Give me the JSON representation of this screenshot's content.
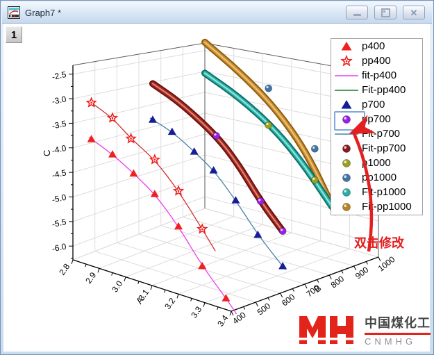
{
  "window": {
    "title": "Graph7 *",
    "layer_label": "1",
    "controls": {
      "minimize": "minimize",
      "restore": "restore",
      "close": "close"
    }
  },
  "chart_data": {
    "type": "scatter",
    "projection": "3d",
    "xlabel": "A",
    "ylabel": "B",
    "zlabel": "C",
    "x_range": [
      2.8,
      3.4
    ],
    "y_range": [
      400,
      1000
    ],
    "z_range": [
      -6.3,
      -2.3
    ],
    "x_tick_labels": [
      "2.8",
      "2.9",
      "3.0",
      "3.1",
      "3.2",
      "3.3",
      "3.4"
    ],
    "y_tick_labels": [
      "400",
      "500",
      "600",
      "700",
      "800",
      "900",
      "1000"
    ],
    "z_tick_labels": [
      "-2.5",
      "-3.0",
      "-3.5",
      "-4.0",
      "-4.5",
      "-5.0",
      "-5.5",
      "-6.0"
    ],
    "grid": true,
    "legend_position": "top-right",
    "series": [
      {
        "name": "p400",
        "type": "scatter",
        "marker": "triangle",
        "color": "#F0201E",
        "B": 400,
        "points": [
          [
            2.87,
            -3.7
          ],
          [
            2.95,
            -3.87
          ],
          [
            3.03,
            -4.12
          ],
          [
            3.11,
            -4.4
          ],
          [
            3.2,
            -4.9
          ],
          [
            3.29,
            -5.55
          ],
          [
            3.38,
            -6.05
          ]
        ]
      },
      {
        "name": "pp400",
        "type": "scatter",
        "marker": "star",
        "color": "#F0201E",
        "B": 400,
        "points": [
          [
            2.87,
            -2.96
          ],
          [
            2.95,
            -3.13
          ],
          [
            3.02,
            -3.43
          ],
          [
            3.11,
            -3.7
          ],
          [
            3.2,
            -4.18
          ],
          [
            3.29,
            -4.8
          ]
        ]
      },
      {
        "name": "fit-p400",
        "type": "line",
        "color": "#EE3CEE",
        "B": 400,
        "points": [
          [
            2.86,
            -3.68
          ],
          [
            2.95,
            -3.87
          ],
          [
            3.03,
            -4.12
          ],
          [
            3.11,
            -4.4
          ],
          [
            3.2,
            -4.9
          ],
          [
            3.29,
            -5.55
          ],
          [
            3.38,
            -6.05
          ],
          [
            3.42,
            -6.3
          ]
        ]
      },
      {
        "name": "Fit-pp400",
        "type": "line",
        "color": "#D62A2A",
        "legend_color": "#1A7A34",
        "B": 400,
        "points": [
          [
            2.86,
            -2.94
          ],
          [
            2.95,
            -3.13
          ],
          [
            3.02,
            -3.43
          ],
          [
            3.11,
            -3.7
          ],
          [
            3.2,
            -4.18
          ],
          [
            3.29,
            -4.8
          ],
          [
            3.34,
            -5.16
          ]
        ]
      },
      {
        "name": "p700",
        "type": "scatter",
        "marker": "triangle",
        "color": "#161D96",
        "B": 700,
        "points": [
          [
            2.85,
            -3.68
          ],
          [
            2.92,
            -3.83
          ],
          [
            3.0,
            -4.13
          ],
          [
            3.07,
            -4.42
          ],
          [
            3.15,
            -4.93
          ],
          [
            3.23,
            -5.53
          ],
          [
            3.32,
            -6.04
          ]
        ]
      },
      {
        "name": "pp700",
        "type": "scatter",
        "marker": "ball",
        "color": "#9B1FE8",
        "B": 700,
        "points": [
          [
            3.08,
            -3.66
          ],
          [
            3.24,
            -4.8
          ],
          [
            3.32,
            -5.3
          ]
        ]
      },
      {
        "name": "Fit-p700",
        "type": "line",
        "color": "#4682A8",
        "B": 700,
        "points": [
          [
            2.84,
            -3.66
          ],
          [
            2.92,
            -3.83
          ],
          [
            3.0,
            -4.13
          ],
          [
            3.07,
            -4.42
          ],
          [
            3.15,
            -4.93
          ],
          [
            3.23,
            -5.53
          ],
          [
            3.33,
            -6.1
          ]
        ]
      },
      {
        "name": "Fit-pp700",
        "type": "tube",
        "color": "#8C1A1A",
        "tube": {
          "edge": "#6B1010",
          "core": "#A82820",
          "hi": "#DE9E86"
        },
        "B": 700,
        "points": [
          [
            2.85,
            -2.89
          ],
          [
            2.95,
            -3.15
          ],
          [
            3.08,
            -3.66
          ],
          [
            3.16,
            -4.15
          ],
          [
            3.24,
            -4.8
          ],
          [
            3.32,
            -5.3
          ]
        ]
      },
      {
        "name": "p1000",
        "type": "scatter",
        "marker": "ball",
        "color": "#99A21F",
        "B": 1000,
        "points": [
          [
            3.02,
            -3.95
          ],
          [
            3.18,
            -4.95
          ]
        ]
      },
      {
        "name": "pp1000",
        "type": "scatter",
        "marker": "ball",
        "color": "#3F74A8",
        "B": 1000,
        "points": [
          [
            3.02,
            -3.1
          ],
          [
            3.18,
            -4.25
          ]
        ]
      },
      {
        "name": "Fit-p1000",
        "type": "tube",
        "color": "#27AFA6",
        "tube": {
          "edge": "#0E6E68",
          "core": "#2BB3A8",
          "hi": "#A8EEE6"
        },
        "B": 1000,
        "points": [
          [
            2.8,
            -3.04
          ],
          [
            2.92,
            -3.45
          ],
          [
            3.04,
            -4.0
          ],
          [
            3.14,
            -4.65
          ],
          [
            3.24,
            -5.45
          ]
        ]
      },
      {
        "name": "Fit-pp1000",
        "type": "tube",
        "color": "#BB8222",
        "tube": {
          "edge": "#8F5E0B",
          "core": "#CE8F33",
          "hi": "#F0CE8C"
        },
        "B": 1000,
        "points": [
          [
            2.8,
            -2.3
          ],
          [
            2.92,
            -2.85
          ],
          [
            3.04,
            -3.5
          ],
          [
            3.15,
            -4.35
          ],
          [
            3.25,
            -5.55
          ]
        ]
      }
    ]
  },
  "legend": {
    "entries": [
      {
        "label": "p400",
        "symbol": "triangle",
        "color": "#F0201E"
      },
      {
        "label": "pp400",
        "symbol": "star",
        "color": "#F0201E"
      },
      {
        "label": "fit-p400",
        "symbol": "line",
        "color": "#EE3CEE"
      },
      {
        "label": "Fit-pp400",
        "symbol": "line",
        "color": "#1A7A34"
      },
      {
        "label": "p700",
        "symbol": "triangle",
        "color": "#161D96"
      },
      {
        "label": "pp700",
        "symbol": "ball",
        "color": "#9B1FE8",
        "selected": true
      },
      {
        "label": "Fit-p700",
        "symbol": "line",
        "color": "#4682A8"
      },
      {
        "label": "Fit-pp700",
        "symbol": "ball",
        "color": "#8C1A1A"
      },
      {
        "label": "p1000",
        "symbol": "ball",
        "color": "#99A21F"
      },
      {
        "label": "pp1000",
        "symbol": "ball",
        "color": "#3F74A8"
      },
      {
        "label": "Fit-p1000",
        "symbol": "ball",
        "color": "#27AFA6"
      },
      {
        "label": "Fit-pp1000",
        "symbol": "ball",
        "color": "#BB8222"
      }
    ],
    "selection_color": "#7FA8DC"
  },
  "annotation": {
    "text": "双击修改",
    "color": "#E32020"
  },
  "watermark": {
    "cn": "中国煤化工",
    "en": "CNMHG",
    "logo_color": "#E3241B"
  }
}
